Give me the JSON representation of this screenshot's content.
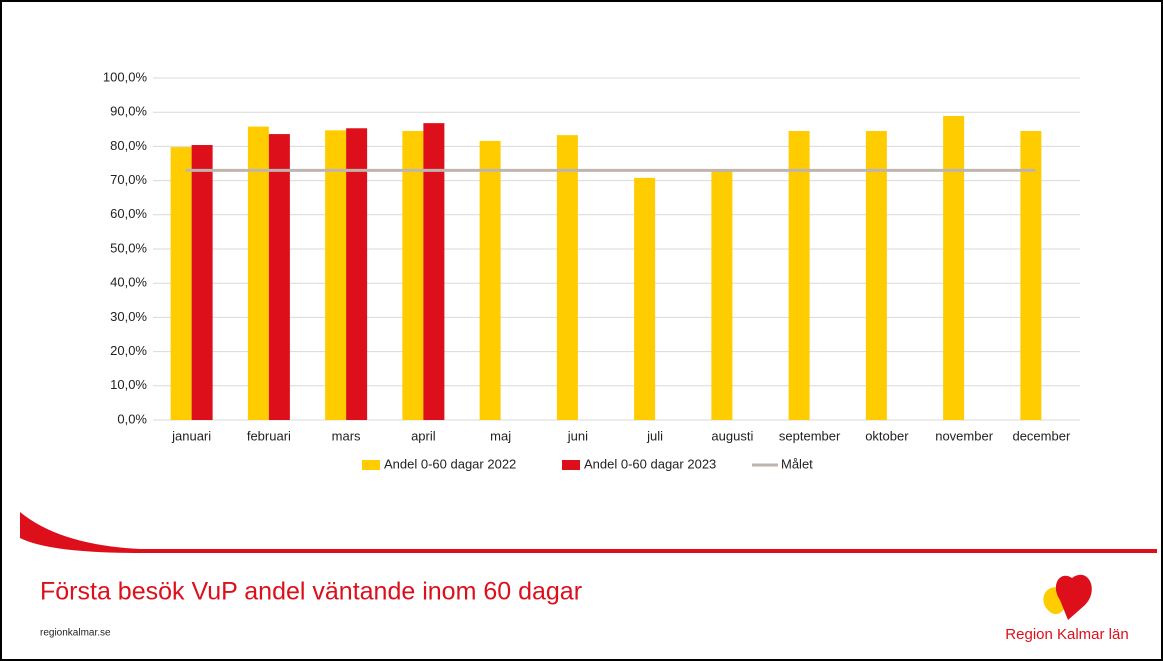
{
  "chart_data": {
    "type": "bar",
    "categories": [
      "januari",
      "februari",
      "mars",
      "april",
      "maj",
      "juni",
      "juli",
      "augusti",
      "september",
      "oktober",
      "november",
      "december"
    ],
    "series": [
      {
        "name": "Andel 0-60 dagar 2022",
        "color": "#ffcc00",
        "type": "bar",
        "values": [
          79.8,
          85.8,
          84.7,
          84.5,
          81.6,
          83.3,
          70.8,
          72.8,
          84.5,
          84.5,
          88.9,
          84.5
        ]
      },
      {
        "name": "Andel 0-60 dagar 2023",
        "color": "#dd0f1b",
        "type": "bar",
        "values": [
          80.4,
          83.6,
          85.3,
          86.8,
          null,
          null,
          null,
          null,
          null,
          null,
          null,
          null
        ]
      },
      {
        "name": "Målet",
        "color": "#bfb4ae",
        "type": "line",
        "values": [
          73,
          73,
          73,
          73,
          73,
          73,
          73,
          73,
          73,
          73,
          73,
          73
        ]
      }
    ],
    "ylim": [
      0,
      100
    ],
    "yticks": [
      {
        "value": 0,
        "label": "0,0%"
      },
      {
        "value": 10,
        "label": "10,0%"
      },
      {
        "value": 20,
        "label": "20,0%"
      },
      {
        "value": 30,
        "label": "30,0%"
      },
      {
        "value": 40,
        "label": "40,0%"
      },
      {
        "value": 50,
        "label": "50,0%"
      },
      {
        "value": 60,
        "label": "60,0%"
      },
      {
        "value": 70,
        "label": "70,0%"
      },
      {
        "value": 80,
        "label": "80,0%"
      },
      {
        "value": 90,
        "label": "90,0%"
      },
      {
        "value": 100,
        "label": "100,0%"
      }
    ],
    "grid": true,
    "legend": "bottom"
  },
  "footer": {
    "title": "Första besök VuP andel väntande inom 60 dagar",
    "url": "regionkalmar.se",
    "logo": "Region Kalmar län"
  }
}
